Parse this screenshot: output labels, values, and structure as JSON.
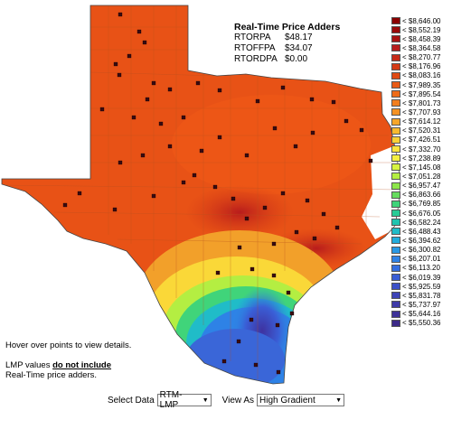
{
  "adders": {
    "title": "Real-Time Price Adders",
    "rows": [
      {
        "key": "RTORPA",
        "value": "$48.17"
      },
      {
        "key": "RTOFFPA",
        "value": "$34.07"
      },
      {
        "key": "RTORDPA",
        "value": "$0.00"
      }
    ]
  },
  "legend": [
    {
      "label": "< $8,646.00",
      "color": "#8b0000"
    },
    {
      "label": "< $8,552.19",
      "color": "#9a0a0a"
    },
    {
      "label": "< $8,458.39",
      "color": "#a91212"
    },
    {
      "label": "< $8,364.58",
      "color": "#b81c1c"
    },
    {
      "label": "< $8,270.77",
      "color": "#c62a18"
    },
    {
      "label": "< $8,176.96",
      "color": "#d43a16"
    },
    {
      "label": "< $8,083.16",
      "color": "#e04a14"
    },
    {
      "label": "< $7,989.35",
      "color": "#e85a16"
    },
    {
      "label": "< $7,895.54",
      "color": "#ee6c1a"
    },
    {
      "label": "< $7,801.73",
      "color": "#f27e1e"
    },
    {
      "label": "< $7,707.93",
      "color": "#f49224"
    },
    {
      "label": "< $7,614.12",
      "color": "#f6a62a"
    },
    {
      "label": "< $7,520.31",
      "color": "#f8ba30"
    },
    {
      "label": "< $7,426.51",
      "color": "#fad036"
    },
    {
      "label": "< $7,332.70",
      "color": "#fce43c"
    },
    {
      "label": "< $7,238.89",
      "color": "#f4f040"
    },
    {
      "label": "< $7,145.08",
      "color": "#d8f440"
    },
    {
      "label": "< $7,051.28",
      "color": "#b4ee42"
    },
    {
      "label": "< $6,957.47",
      "color": "#8ee64a"
    },
    {
      "label": "< $6,863.66",
      "color": "#66dc5e"
    },
    {
      "label": "< $6,769.85",
      "color": "#40d47a"
    },
    {
      "label": "< $6,676.05",
      "color": "#28cc96"
    },
    {
      "label": "< $6,582.24",
      "color": "#20c4b0"
    },
    {
      "label": "< $6,488.43",
      "color": "#20bcc8"
    },
    {
      "label": "< $6,394.62",
      "color": "#22acdc"
    },
    {
      "label": "< $6,300.82",
      "color": "#2898e4"
    },
    {
      "label": "< $6,207.01",
      "color": "#2e82e6"
    },
    {
      "label": "< $6,113.20",
      "color": "#346ee0"
    },
    {
      "label": "< $6,019.39",
      "color": "#3a5ed6"
    },
    {
      "label": "< $5,925.59",
      "color": "#3c50c8"
    },
    {
      "label": "< $5,831.78",
      "color": "#3e44b8"
    },
    {
      "label": "< $5,737.97",
      "color": "#3e3aa8"
    },
    {
      "label": "< $5,644.16",
      "color": "#3e3298"
    },
    {
      "label": "< $5,550.36",
      "color": "#3c2a88"
    }
  ],
  "help": {
    "hover": "Hover over points to view details.",
    "lmp_prefix": "LMP values ",
    "lmp_emphasis": "do not include",
    "lmp_suffix": "Real-Time price adders."
  },
  "controls": {
    "select_data_label": "Select Data",
    "select_data_value": "RTM-LMP",
    "view_as_label": "View As",
    "view_as_value": "High Gradient"
  }
}
